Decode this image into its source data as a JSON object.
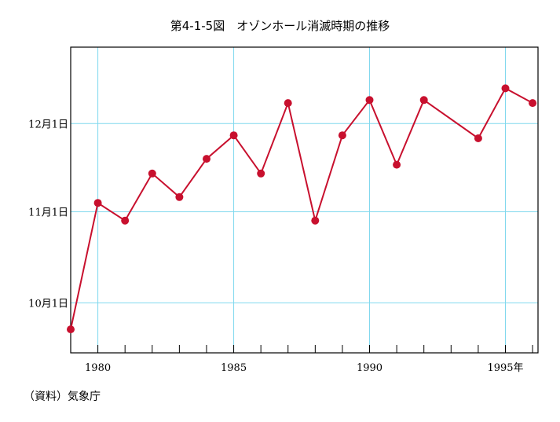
{
  "chart_data": {
    "type": "line",
    "title": "第4-1-5図　オゾンホール消滅時期の推移",
    "source": "（資料）気象庁",
    "xlabel": "",
    "ylabel": "",
    "x_tick_labels": [
      "1980",
      "1985",
      "1990",
      "1995年"
    ],
    "x_tick_values": [
      1980,
      1985,
      1990,
      1995
    ],
    "xlim": [
      1979,
      1996.2
    ],
    "y_tick_labels": [
      "10月1日",
      "11月1日",
      "12月1日"
    ],
    "y_tick_values": [
      "10-01",
      "11-01",
      "12-01"
    ],
    "ylim": [
      "09-14",
      "12-27"
    ],
    "grid": true,
    "line_color": "#c8102e",
    "marker_color": "#c8102e",
    "grid_color": "#7fd8ee",
    "series": [
      {
        "x": [
          1979,
          1980,
          1981,
          1982,
          1983,
          1984,
          1985,
          1986,
          1987,
          1988,
          1989,
          1990,
          1991,
          1992,
          1994,
          1995,
          1996
        ],
        "y": [
          "09-22",
          "11-04",
          "10-29",
          "11-14",
          "11-06",
          "11-19",
          "11-27",
          "11-14",
          "12-08",
          "10-29",
          "11-27",
          "12-09",
          "11-17",
          "12-09",
          "11-26",
          "12-13",
          "12-08"
        ]
      }
    ]
  }
}
